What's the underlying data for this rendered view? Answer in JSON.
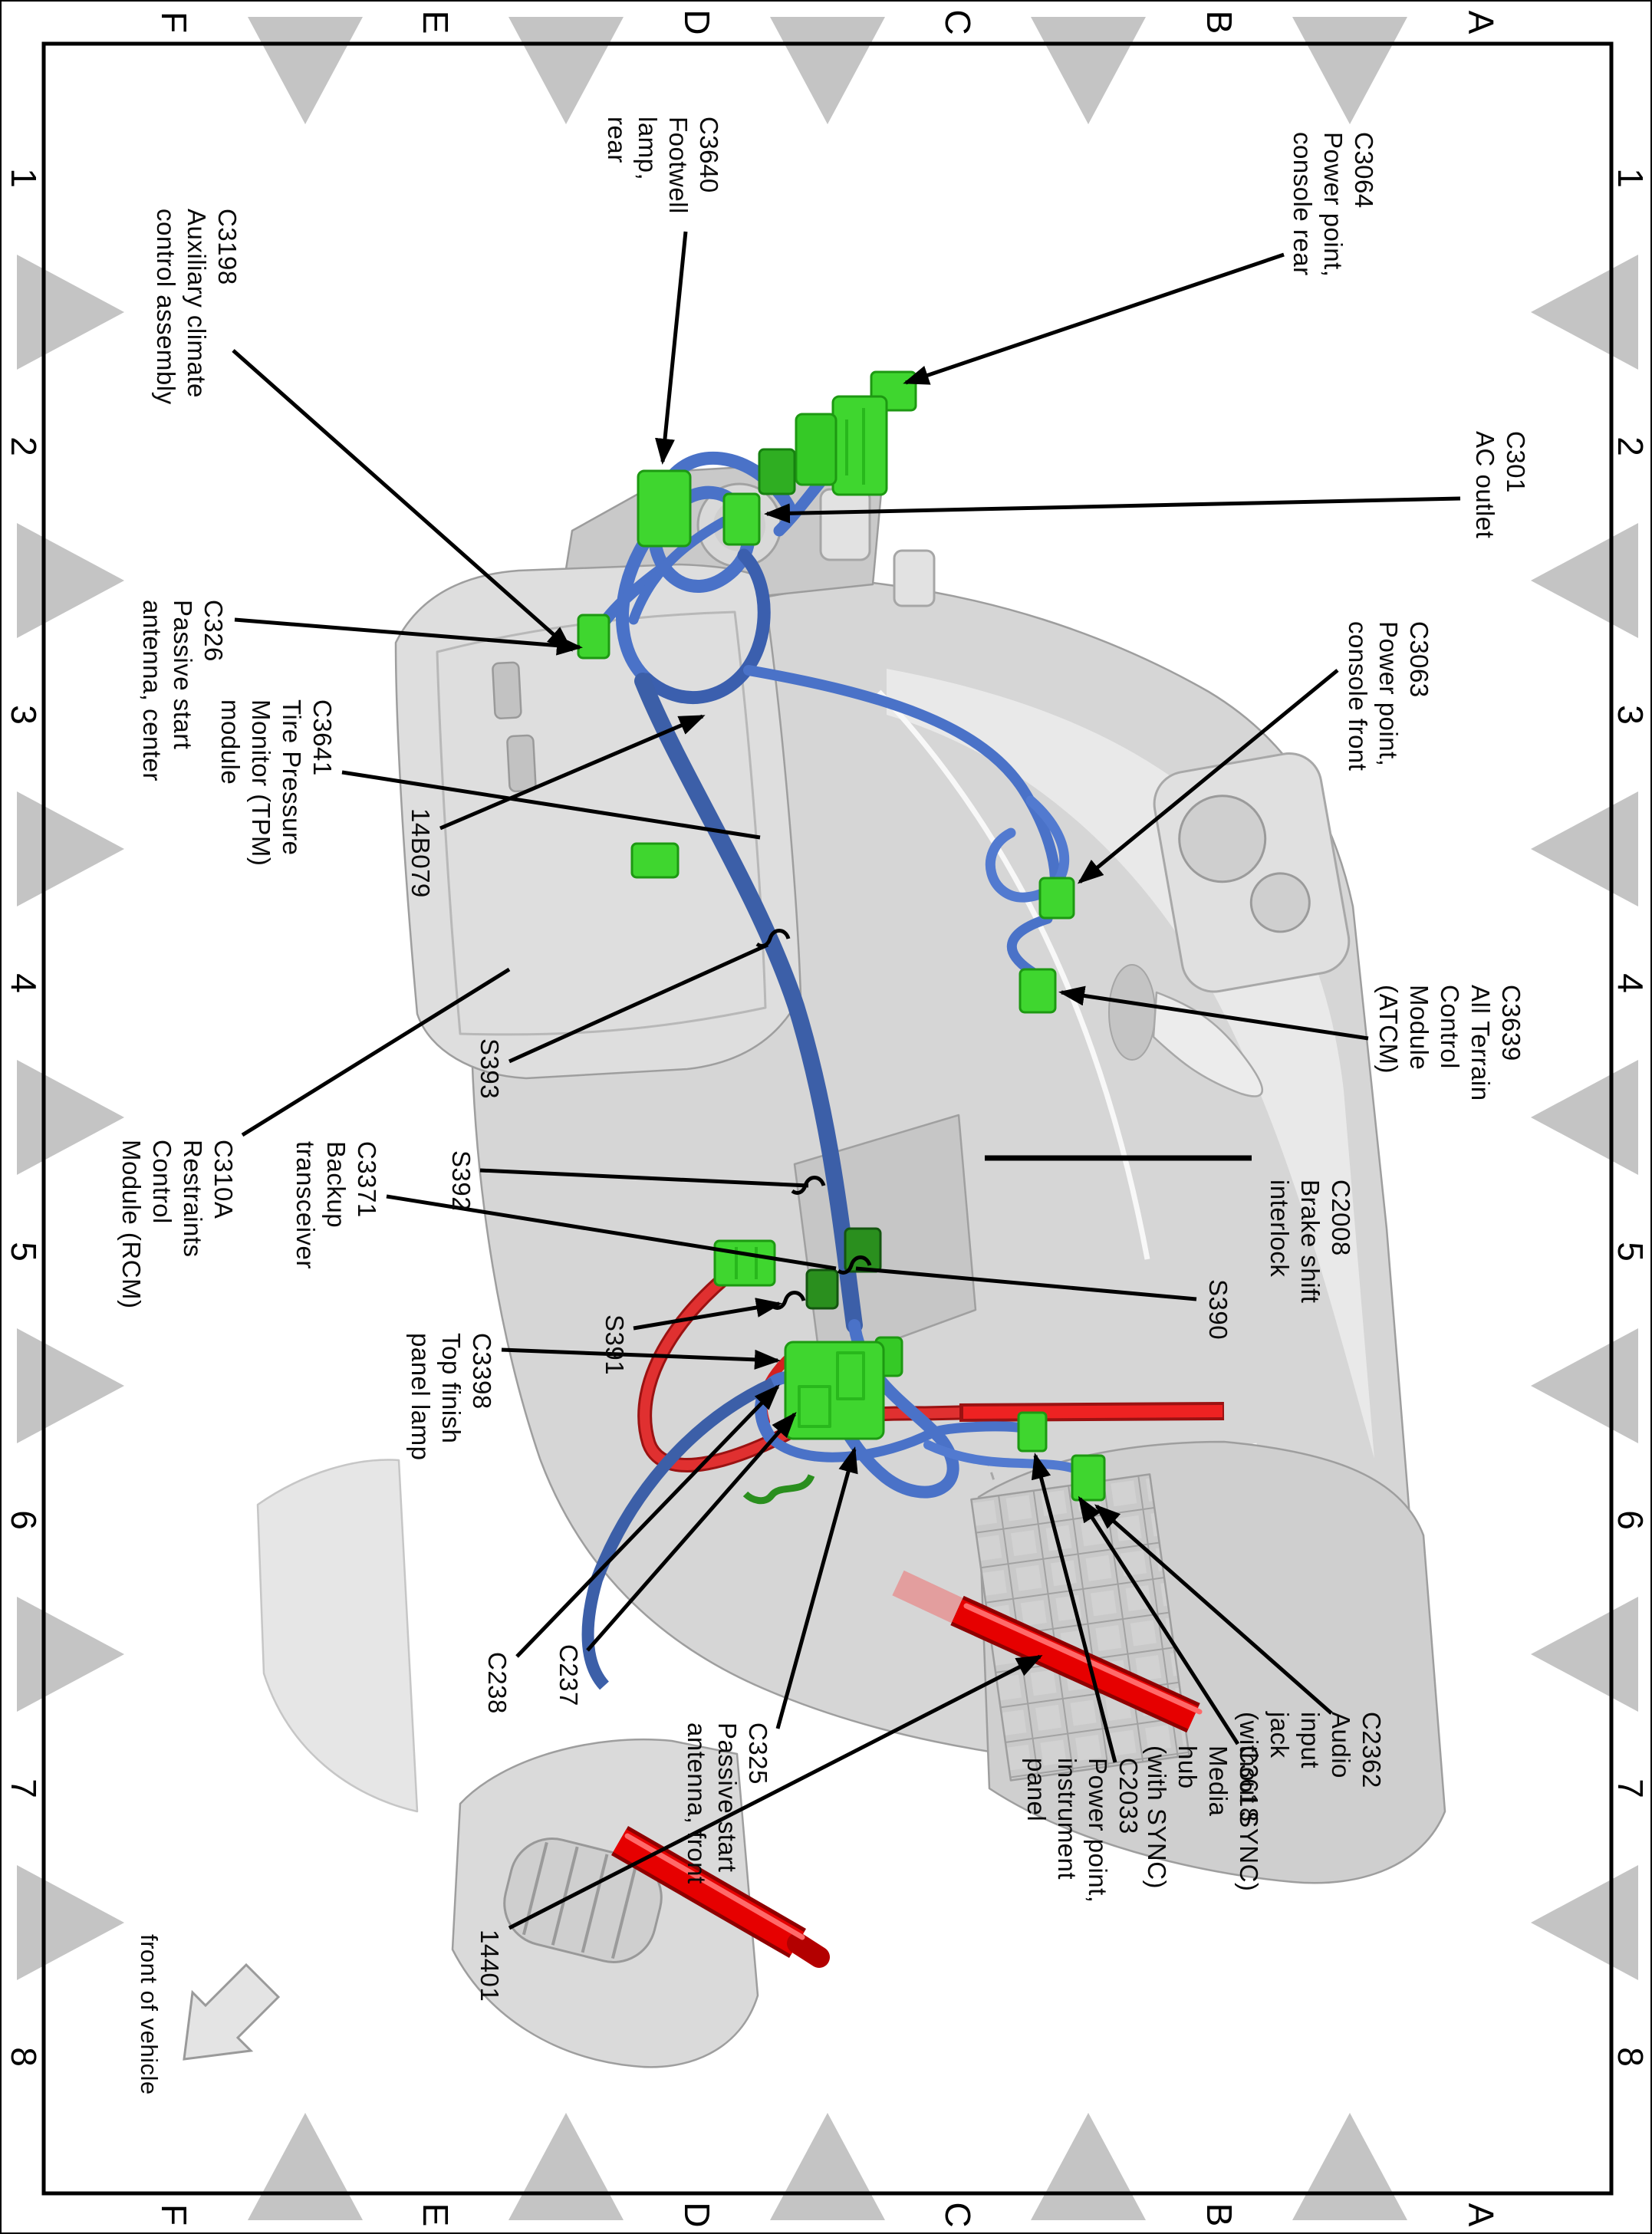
{
  "document": {
    "type": "wiring harness location diagram",
    "subject": "center console harness"
  },
  "grid": {
    "letters": [
      "A",
      "B",
      "C",
      "D",
      "E",
      "F"
    ],
    "numbers": [
      "1",
      "2",
      "3",
      "4",
      "5",
      "6",
      "7",
      "8"
    ],
    "triangle_color": "#c4c4c4"
  },
  "front_of_vehicle": {
    "label": "front of vehicle"
  },
  "harness_number": "14B079",
  "colors": {
    "harness_blue": "#4a72c8",
    "harness_blue_dark": "#3c5fa8",
    "harness_red": "#e00000",
    "connector_green": "#3fd62f",
    "connector_dark_green": "#2a8f1e",
    "console_gray": "#d6d6d6",
    "leader_black": "#000000",
    "zone_triangle_gray": "#c4c4c4"
  },
  "callouts": {
    "c3198": {
      "text": "C3198\nAuxiliary climate\ncontrol assembly"
    },
    "c3640": {
      "text": "C3640\nFootwell\nlamp,\nrear"
    },
    "c3064": {
      "text": "C3064\nPower point,\nconsole rear"
    },
    "c301": {
      "text": "C301\nAC outlet"
    },
    "c326": {
      "text": "C326\nPassive start\nantenna, center"
    },
    "c3641": {
      "text": "C3641\nTire Pressure\nMonitor (TPM)\nmodule"
    },
    "b14b079": {
      "text": "14B079"
    },
    "c3063": {
      "text": "C3063\nPower point,\nconsole front"
    },
    "c3639": {
      "text": "C3639\nAll Terrain\nControl\nModule\n(ATCM)"
    },
    "s393": {
      "text": "S393"
    },
    "s392": {
      "text": "S392"
    },
    "c3371": {
      "text": "C3371\nBackup\ntransceiver"
    },
    "c310a": {
      "text": "C310A\nRestraints\nControl\nModule (RCM)"
    },
    "c2008": {
      "text": "C2008\nBrake shift\ninterlock"
    },
    "s390": {
      "text": "S390"
    },
    "s391": {
      "text": "S391"
    },
    "c3398": {
      "text": "C3398\nTop finish\npanel lamp"
    },
    "c238": {
      "text": "C238"
    },
    "c237": {
      "text": "C237"
    },
    "c325": {
      "text": "C325\nPassive start\nantenna, front"
    },
    "c2033": {
      "text": "C2033\nPower point,\ninstrument\npanel"
    },
    "c3618": {
      "text": "C3618\nMedia\nhub\n(with SYNC)"
    },
    "c2362": {
      "text": "C2362\nAudio\ninput\njack\n(without SYNC)"
    },
    "n14401": {
      "text": "14401"
    }
  }
}
